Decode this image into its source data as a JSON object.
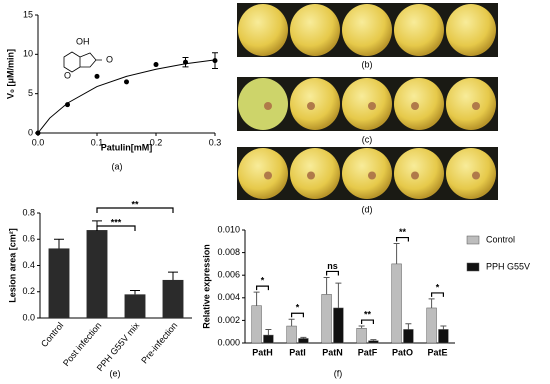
{
  "chart_data": [
    {
      "type": "scatter",
      "panel_label": "(a)",
      "x_label": "Patulin[mM]",
      "y_label": "V₀ [μM/min]",
      "structure_labels": [
        "OH",
        "O",
        "O"
      ],
      "x": [
        0,
        0.05,
        0.1,
        0.15,
        0.2,
        0.25,
        0.3
      ],
      "values": [
        0,
        3.6,
        7.2,
        6.5,
        8.7,
        9.0,
        9.2
      ],
      "errors": [
        null,
        null,
        null,
        null,
        null,
        0.6,
        1.0
      ],
      "curve": {
        "x": [
          0,
          0.02,
          0.05,
          0.1,
          0.15,
          0.2,
          0.25,
          0.3
        ],
        "values": [
          0,
          1.9,
          3.8,
          5.9,
          7.2,
          8.1,
          8.8,
          9.3
        ]
      },
      "color": "#000000",
      "xlim": [
        0,
        0.3
      ],
      "xticks": [
        {
          "value": 0,
          "label": "0.0"
        },
        0.1,
        0.2,
        0.3
      ],
      "ylim": [
        0,
        15
      ],
      "yticks": [
        0,
        5,
        10,
        15
      ]
    },
    {
      "type": "bar",
      "panel_label": "(e)",
      "y_label": "Lesion area [cm²]",
      "categories": [
        "Control",
        "Post infection",
        "PPH G55V mix",
        "Pre-infection"
      ],
      "values": [
        0.53,
        0.67,
        0.18,
        0.29
      ],
      "errors": [
        0.07,
        0.07,
        0.03,
        0.06
      ],
      "color": "#2b2b2b",
      "significance": [
        {
          "text": "***",
          "between": [
            "Post infection",
            "PPH G55V mix"
          ]
        },
        {
          "text": "**",
          "between": [
            "Post infection",
            "Pre-infection"
          ]
        }
      ],
      "ylim": [
        0,
        0.8
      ],
      "yticks": [
        {
          "value": 0,
          "label": "0.0"
        },
        0.2,
        0.4,
        0.6,
        0.8
      ]
    },
    {
      "type": "grouped_bar",
      "panel_label": "(f)",
      "y_label": "Relative expression",
      "categories": [
        "PatH",
        "PatI",
        "PatN",
        "PatF",
        "PatO",
        "PatE"
      ],
      "series": [
        {
          "name": "Control",
          "color": "#bdbdbd",
          "values": [
            0.0033,
            0.0015,
            0.0043,
            0.0013,
            0.007,
            0.0031
          ],
          "errors": [
            0.0012,
            0.0006,
            0.0015,
            0.0002,
            0.0018,
            0.0008
          ]
        },
        {
          "name": "PPH G55V",
          "color": "#111111",
          "values": [
            0.0007,
            0.0004,
            0.0031,
            0.0002,
            0.0012,
            0.0012
          ],
          "errors": [
            0.0005,
            0.0001,
            0.0022,
            0.0001,
            0.0005,
            0.0003
          ]
        }
      ],
      "significance": [
        "*",
        "*",
        "ns",
        "**",
        "**",
        "*"
      ],
      "ylim": [
        0,
        0.01
      ],
      "yticks": [
        {
          "value": 0,
          "label": "0.000"
        },
        {
          "value": 0.002,
          "label": "0.002"
        },
        {
          "value": 0.004,
          "label": "0.004"
        },
        {
          "value": 0.006,
          "label": "0.006"
        },
        {
          "value": 0.008,
          "label": "0.008"
        },
        {
          "value": 0.01,
          "label": "0.010"
        }
      ]
    }
  ],
  "photos": {
    "labels": [
      "(b)",
      "(c)",
      "(d)"
    ]
  }
}
